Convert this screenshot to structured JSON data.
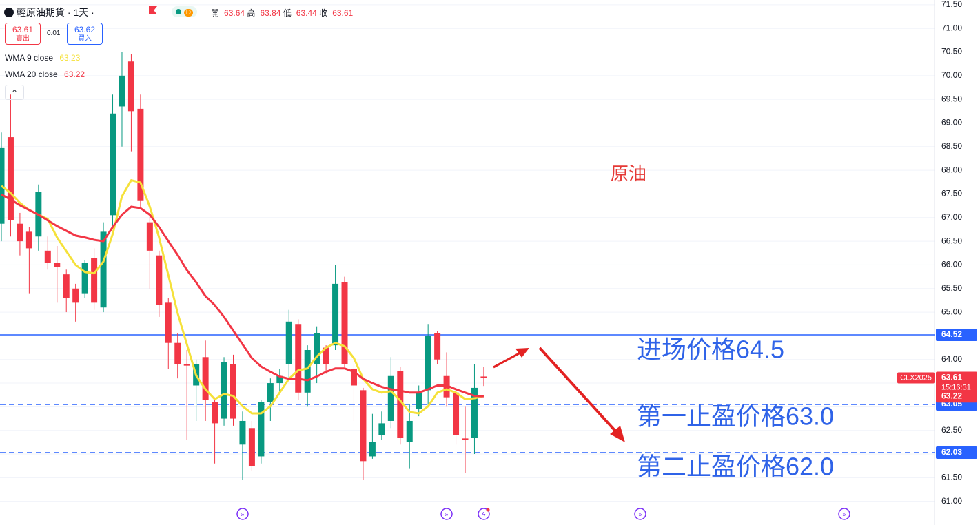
{
  "header": {
    "symbol": "輕原油期貨 · 1天 ·",
    "badge": "D",
    "ohlc_labels": [
      "開=",
      "高=",
      "低=",
      "收="
    ]
  },
  "quote": {
    "sell": 63.61,
    "sell_label": "賣出",
    "spread": 0.01,
    "buy": 63.62,
    "buy_label": "買入"
  },
  "chart_data": {
    "type": "candlestick",
    "categories": [
      null,
      null,
      null,
      null,
      null,
      null,
      null,
      null,
      null,
      null,
      null,
      null,
      null,
      null,
      null,
      null,
      null,
      null,
      null,
      null,
      null,
      null,
      null,
      null,
      null,
      null,
      null,
      null,
      null,
      null,
      null,
      null,
      null,
      null,
      null,
      null,
      null,
      null,
      null,
      null,
      null,
      null,
      null,
      null,
      null,
      null,
      null,
      null,
      null,
      null,
      null,
      null,
      null
    ],
    "open": [
      66.87,
      68.7,
      66.87,
      66.7,
      66.6,
      66.3,
      66.05,
      65.8,
      65.5,
      65.4,
      66.15,
      65.1,
      67.05,
      69.35,
      70.3,
      69.3,
      66.9,
      66.2,
      65.2,
      64.35,
      63.9,
      63.45,
      64.05,
      63.1,
      62.75,
      63.9,
      62.2,
      62.55,
      61.95,
      63.1,
      63.5,
      63.9,
      64.75,
      63.3,
      63.9,
      64.25,
      64.3,
      65.63,
      63.8,
      63.35,
      61.95,
      62.4,
      62.7,
      63.75,
      62.25,
      62.95,
      63.35,
      64.55,
      63.65,
      63.3,
      62.33,
      62.35,
      63.64
    ],
    "high": [
      68.8,
      69.6,
      67.1,
      66.8,
      67.7,
      66.6,
      66.4,
      65.9,
      65.6,
      66.1,
      66.35,
      66.9,
      69.6,
      70.5,
      70.45,
      69.6,
      67.1,
      66.3,
      65.3,
      64.55,
      64.2,
      64.0,
      64.4,
      63.2,
      64.05,
      64.1,
      62.9,
      62.7,
      63.15,
      63.6,
      63.8,
      65.05,
      64.85,
      64.3,
      64.7,
      64.3,
      66.0,
      65.75,
      63.9,
      63.4,
      62.85,
      62.9,
      64.05,
      63.85,
      63.05,
      63.45,
      64.75,
      64.6,
      64.15,
      63.45,
      63.0,
      63.9,
      63.84
    ],
    "low": [
      66.5,
      66.6,
      66.2,
      65.4,
      66.3,
      65.9,
      65.2,
      65.0,
      64.8,
      65.3,
      65.05,
      65.0,
      66.8,
      68.5,
      68.4,
      67.2,
      65.5,
      64.9,
      63.8,
      63.6,
      62.3,
      62.7,
      62.7,
      61.8,
      62.6,
      62.6,
      61.45,
      61.65,
      61.8,
      62.7,
      63.3,
      63.6,
      63.15,
      63.0,
      63.5,
      63.7,
      64.2,
      63.85,
      62.7,
      61.45,
      61.9,
      62.3,
      62.55,
      62.2,
      61.7,
      62.8,
      63.0,
      63.9,
      63.0,
      62.2,
      61.6,
      62.0,
      63.44
    ],
    "close": [
      68.47,
      66.95,
      66.5,
      66.35,
      67.55,
      66.05,
      65.95,
      65.3,
      65.2,
      66.05,
      65.2,
      66.7,
      69.2,
      70.0,
      69.25,
      67.35,
      66.3,
      65.15,
      64.35,
      63.9,
      63.87,
      63.9,
      63.15,
      62.65,
      63.95,
      62.75,
      62.7,
      61.75,
      63.1,
      63.5,
      63.65,
      64.8,
      63.3,
      64.2,
      64.55,
      63.9,
      65.6,
      63.9,
      63.45,
      61.85,
      62.25,
      62.65,
      63.65,
      62.35,
      62.7,
      63.3,
      64.5,
      64.0,
      63.2,
      62.4,
      62.3,
      63.4,
      63.61
    ],
    "up_color": "#089981",
    "down_color": "#f23645",
    "series": [
      {
        "name": "WMA 9 close",
        "color": "#f5e13b",
        "values": [
          67.67,
          67.52,
          67.31,
          67.16,
          67.06,
          66.97,
          66.58,
          66.29,
          66.0,
          65.85,
          65.82,
          66.07,
          66.65,
          67.45,
          67.79,
          67.74,
          67.23,
          66.58,
          65.78,
          64.98,
          64.32,
          63.66,
          63.37,
          63.16,
          63.27,
          63.23,
          63.01,
          62.86,
          62.86,
          63.01,
          63.3,
          63.59,
          63.77,
          63.81,
          64.06,
          64.25,
          64.35,
          64.28,
          64.03,
          63.59,
          63.37,
          63.3,
          63.33,
          63.13,
          62.89,
          62.86,
          63.01,
          63.3,
          63.37,
          63.3,
          63.16,
          63.18,
          63.23
        ]
      },
      {
        "name": "WMA 20 close",
        "color": "#f23645",
        "values": [
          67.49,
          67.38,
          67.26,
          67.16,
          67.06,
          66.94,
          66.82,
          66.72,
          66.62,
          66.58,
          66.53,
          66.5,
          66.8,
          67.06,
          67.23,
          67.2,
          67.06,
          66.8,
          66.5,
          66.21,
          65.89,
          65.63,
          65.34,
          65.15,
          64.9,
          64.61,
          64.32,
          64.03,
          63.85,
          63.74,
          63.64,
          63.59,
          63.59,
          63.56,
          63.64,
          63.74,
          63.81,
          63.81,
          63.74,
          63.59,
          63.5,
          63.42,
          63.37,
          63.34,
          63.3,
          63.3,
          63.37,
          63.45,
          63.45,
          63.37,
          63.3,
          63.23,
          63.22
        ]
      }
    ],
    "ylim": [
      60.5,
      71.6
    ],
    "yticks": [
      {
        "value": 61,
        "label": "61.00"
      },
      {
        "value": 61.5,
        "label": "61.50"
      },
      {
        "value": 62,
        "label": "62.00"
      },
      {
        "value": 62.5,
        "label": "62.50"
      },
      {
        "value": 63,
        "label": "63.00"
      },
      {
        "value": 63.5,
        "label": "63.50"
      },
      {
        "value": 64,
        "label": "64.00"
      },
      {
        "value": 64.5,
        "label": "64.50"
      },
      {
        "value": 65,
        "label": "65.00"
      },
      {
        "value": 65.5,
        "label": "65.50"
      },
      {
        "value": 66,
        "label": "66.00"
      },
      {
        "value": 66.5,
        "label": "66.50"
      },
      {
        "value": 67,
        "label": "67.00"
      },
      {
        "value": 67.5,
        "label": "67.50"
      },
      {
        "value": 68,
        "label": "68.00"
      },
      {
        "value": 68.5,
        "label": "68.50"
      },
      {
        "value": 69,
        "label": "69.00"
      },
      {
        "value": 69.5,
        "label": "69.50"
      },
      {
        "value": 70,
        "label": "70.00"
      },
      {
        "value": 70.5,
        "label": "70.50"
      },
      {
        "value": 71,
        "label": "71.00"
      },
      {
        "value": 71.5,
        "label": "71.50"
      }
    ],
    "grid": true,
    "hlines": [
      {
        "value": 64.52,
        "color": "#2962ff",
        "style": "solid"
      },
      {
        "value": 63.05,
        "color": "#2962ff",
        "style": "dashed"
      },
      {
        "value": 62.03,
        "color": "#2962ff",
        "style": "dashed"
      }
    ],
    "symbol_tag": "CLX2025",
    "countdown": "15:16:31",
    "annotations": [
      {
        "text": "原油",
        "color": "#e53935"
      },
      {
        "text": "进场价格64.5",
        "color": "#2f63e8"
      },
      {
        "text": "第一止盈价格63.0",
        "color": "#2f63e8"
      },
      {
        "text": "第二止盈价格62.0",
        "color": "#2f63e8"
      }
    ]
  }
}
